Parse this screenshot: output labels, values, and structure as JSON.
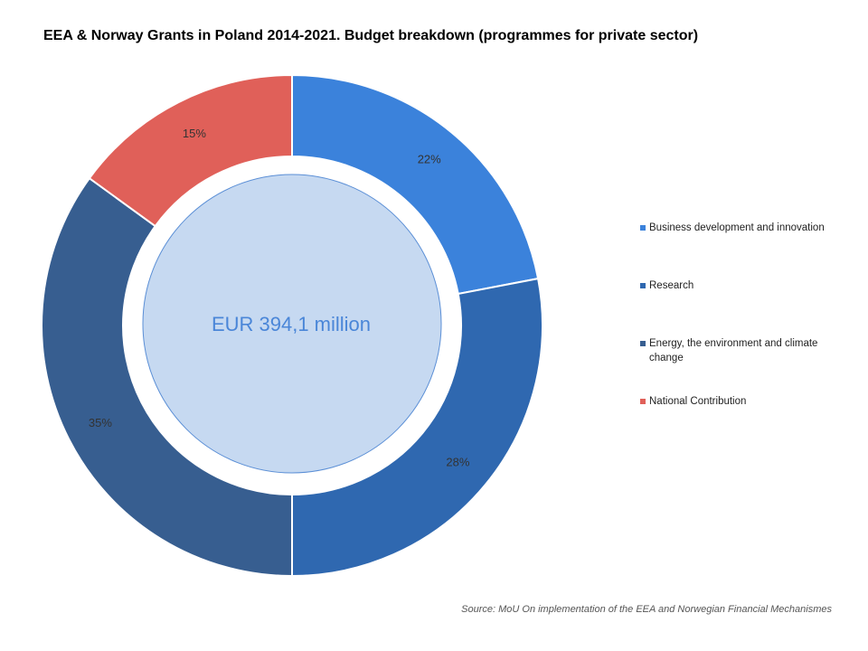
{
  "chart_data": {
    "type": "pie",
    "title": "EEA & Norway Grants in Poland 2014-2021. Budget breakdown (programmes for private sector)",
    "center_label": "EUR 394,1 million",
    "source": "Source: MoU On implementation of the EEA and Norwegian Financial Mechanismes",
    "legend_position": "right",
    "categories": [
      "Business development and innovation",
      "Research",
      "Energy, the environment and climate change",
      "National Contribution"
    ],
    "values": [
      22,
      28,
      35,
      15
    ],
    "labels": [
      "22%",
      "28%",
      "35%",
      "15%"
    ],
    "colors": [
      "#3B82DB",
      "#2F68B0",
      "#375E90",
      "#E06059"
    ]
  }
}
